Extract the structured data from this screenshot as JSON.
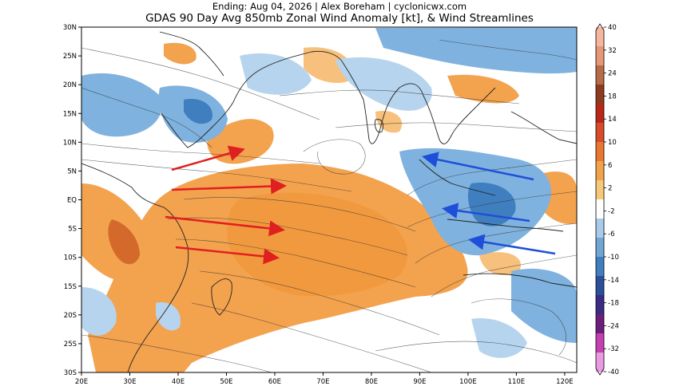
{
  "header": {
    "line1": "Ending: Aug 04, 2026 | Alex Boreham | cyclonicwx.com",
    "line2": "GDAS 90 Day Avg 850mb Zonal Wind Anomaly [kt], & Wind Streamlines"
  },
  "axes": {
    "lon_labels": [
      "20E",
      "30E",
      "40E",
      "50E",
      "60E",
      "70E",
      "80E",
      "90E",
      "100E",
      "110E",
      "120E"
    ],
    "lat_labels": [
      "30N",
      "25N",
      "20N",
      "15N",
      "10N",
      "5N",
      "EQ",
      "5S",
      "10S",
      "15S",
      "20S",
      "25S",
      "30S"
    ]
  },
  "colorbar": {
    "labels": [
      "40",
      "32",
      "24",
      "18",
      "14",
      "10",
      "6",
      "2",
      "-2",
      "-6",
      "-10",
      "-14",
      "-18",
      "-24",
      "-32",
      "-40"
    ],
    "colors": [
      "#f4b6a0",
      "#e59776",
      "#b86b47",
      "#8e3a1e",
      "#b82818",
      "#d94a28",
      "#e8782f",
      "#f2a348",
      "#f6c879",
      "#ffffff",
      "#a9cbe8",
      "#6fa6d6",
      "#3f7fc0",
      "#2c4f9c",
      "#3a2c84",
      "#6b1f7a",
      "#c43fb0",
      "#e99ae2"
    ]
  },
  "anomaly": {
    "positive_color": "#f3a24e",
    "positive_light": "#f7c07c",
    "positive_dark": "#d36a2c",
    "negative_color": "#7fb2de",
    "negative_light": "#b6d4ee",
    "negative_dark": "#3f7fc0"
  },
  "arrows": {
    "westerly_color": "#e02020",
    "easterly_color": "#1f4fd8"
  }
}
